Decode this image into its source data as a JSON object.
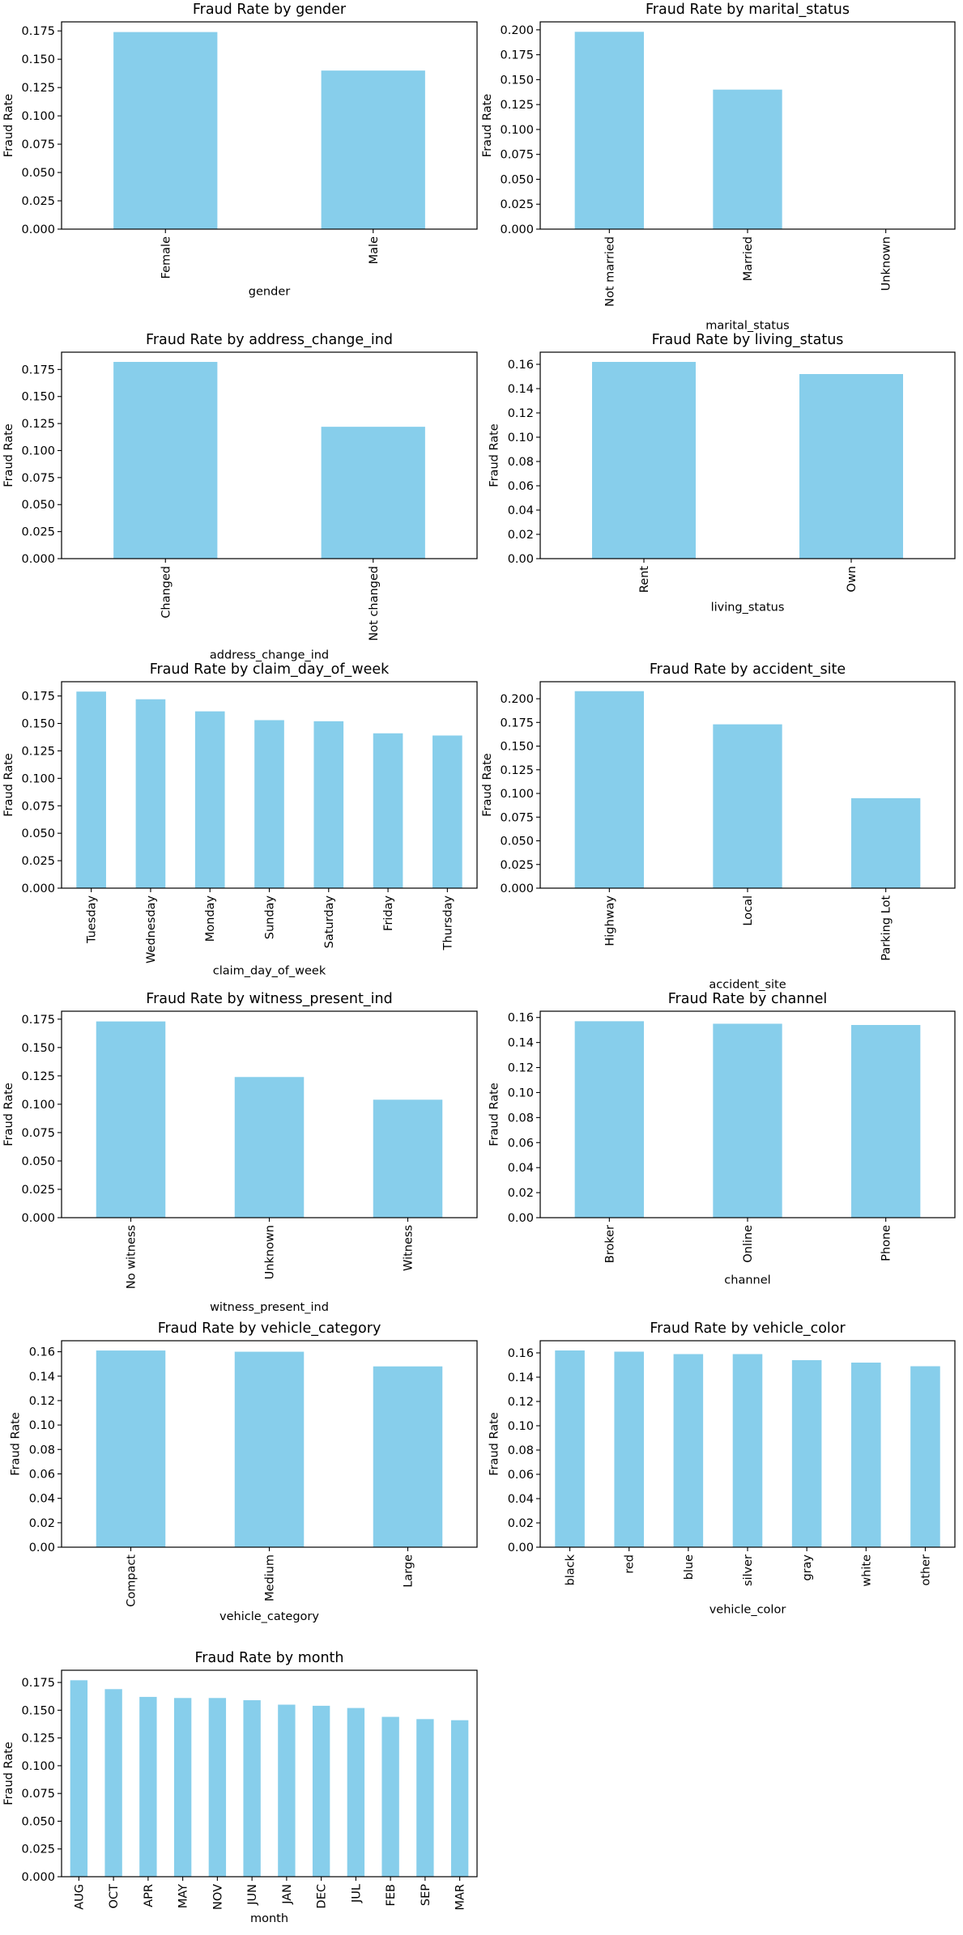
{
  "chart_data": [
    {
      "type": "bar",
      "title": "Fraud Rate by gender",
      "xlabel": "gender",
      "ylabel": "Fraud Rate",
      "categories": [
        "Female",
        "Male"
      ],
      "values": [
        0.174,
        0.14
      ],
      "ylim": [
        0,
        0.183
      ],
      "yticks": [
        "0.000",
        "0.025",
        "0.050",
        "0.075",
        "0.100",
        "0.125",
        "0.150",
        "0.175"
      ],
      "grid": false,
      "bar_color": "#87CEEB"
    },
    {
      "type": "bar",
      "title": "Fraud Rate by marital_status",
      "xlabel": "marital_status",
      "ylabel": "Fraud Rate",
      "categories": [
        "Not married",
        "Married",
        "Unknown"
      ],
      "values": [
        0.198,
        0.14,
        0.0
      ],
      "ylim": [
        0,
        0.208
      ],
      "yticks": [
        "0.000",
        "0.025",
        "0.050",
        "0.075",
        "0.100",
        "0.125",
        "0.150",
        "0.175",
        "0.200"
      ],
      "grid": false,
      "bar_color": "#87CEEB"
    },
    {
      "type": "bar",
      "title": "Fraud Rate by address_change_ind",
      "xlabel": "address_change_ind",
      "ylabel": "Fraud Rate",
      "categories": [
        "Changed",
        "Not changed"
      ],
      "values": [
        0.182,
        0.122
      ],
      "ylim": [
        0,
        0.191
      ],
      "yticks": [
        "0.000",
        "0.025",
        "0.050",
        "0.075",
        "0.100",
        "0.125",
        "0.150",
        "0.175"
      ],
      "grid": false,
      "bar_color": "#87CEEB"
    },
    {
      "type": "bar",
      "title": "Fraud Rate by living_status",
      "xlabel": "living_status",
      "ylabel": "Fraud Rate",
      "categories": [
        "Rent",
        "Own"
      ],
      "values": [
        0.162,
        0.152
      ],
      "ylim": [
        0,
        0.17
      ],
      "yticks": [
        "0.00",
        "0.02",
        "0.04",
        "0.06",
        "0.08",
        "0.10",
        "0.12",
        "0.14",
        "0.16"
      ],
      "grid": false,
      "bar_color": "#87CEEB"
    },
    {
      "type": "bar",
      "title": "Fraud Rate by claim_day_of_week",
      "xlabel": "claim_day_of_week",
      "ylabel": "Fraud Rate",
      "categories": [
        "Tuesday",
        "Wednesday",
        "Monday",
        "Sunday",
        "Saturday",
        "Friday",
        "Thursday"
      ],
      "values": [
        0.179,
        0.172,
        0.161,
        0.153,
        0.152,
        0.141,
        0.139
      ],
      "ylim": [
        0,
        0.188
      ],
      "yticks": [
        "0.000",
        "0.025",
        "0.050",
        "0.075",
        "0.100",
        "0.125",
        "0.150",
        "0.175"
      ],
      "grid": false,
      "bar_color": "#87CEEB"
    },
    {
      "type": "bar",
      "title": "Fraud Rate by accident_site",
      "xlabel": "accident_site",
      "ylabel": "Fraud Rate",
      "categories": [
        "Highway",
        "Local",
        "Parking Lot"
      ],
      "values": [
        0.208,
        0.173,
        0.095
      ],
      "ylim": [
        0,
        0.218
      ],
      "yticks": [
        "0.000",
        "0.025",
        "0.050",
        "0.075",
        "0.100",
        "0.125",
        "0.150",
        "0.175",
        "0.200"
      ],
      "grid": false,
      "bar_color": "#87CEEB"
    },
    {
      "type": "bar",
      "title": "Fraud Rate by witness_present_ind",
      "xlabel": "witness_present_ind",
      "ylabel": "Fraud Rate",
      "categories": [
        "No witness",
        "Unknown",
        "Witness"
      ],
      "values": [
        0.173,
        0.124,
        0.104
      ],
      "ylim": [
        0,
        0.182
      ],
      "yticks": [
        "0.000",
        "0.025",
        "0.050",
        "0.075",
        "0.100",
        "0.125",
        "0.150",
        "0.175"
      ],
      "grid": false,
      "bar_color": "#87CEEB"
    },
    {
      "type": "bar",
      "title": "Fraud Rate by channel",
      "xlabel": "channel",
      "ylabel": "Fraud Rate",
      "categories": [
        "Broker",
        "Online",
        "Phone"
      ],
      "values": [
        0.157,
        0.155,
        0.154
      ],
      "ylim": [
        0,
        0.165
      ],
      "yticks": [
        "0.00",
        "0.02",
        "0.04",
        "0.06",
        "0.08",
        "0.10",
        "0.12",
        "0.14",
        "0.16"
      ],
      "grid": false,
      "bar_color": "#87CEEB"
    },
    {
      "type": "bar",
      "title": "Fraud Rate by vehicle_category",
      "xlabel": "vehicle_category",
      "ylabel": "Fraud Rate",
      "categories": [
        "Compact",
        "Medium",
        "Large"
      ],
      "values": [
        0.161,
        0.16,
        0.148
      ],
      "ylim": [
        0,
        0.169
      ],
      "yticks": [
        "0.00",
        "0.02",
        "0.04",
        "0.06",
        "0.08",
        "0.10",
        "0.12",
        "0.14",
        "0.16"
      ],
      "grid": false,
      "bar_color": "#87CEEB"
    },
    {
      "type": "bar",
      "title": "Fraud Rate by vehicle_color",
      "xlabel": "vehicle_color",
      "ylabel": "Fraud Rate",
      "categories": [
        "black",
        "red",
        "blue",
        "silver",
        "gray",
        "white",
        "other"
      ],
      "values": [
        0.162,
        0.161,
        0.159,
        0.159,
        0.154,
        0.152,
        0.149
      ],
      "ylim": [
        0,
        0.17
      ],
      "yticks": [
        "0.00",
        "0.02",
        "0.04",
        "0.06",
        "0.08",
        "0.10",
        "0.12",
        "0.14",
        "0.16"
      ],
      "grid": false,
      "bar_color": "#87CEEB"
    },
    {
      "type": "bar",
      "title": "Fraud Rate by month",
      "xlabel": "month",
      "ylabel": "Fraud Rate",
      "categories": [
        "AUG",
        "OCT",
        "APR",
        "MAY",
        "NOV",
        "JUN",
        "JAN",
        "DEC",
        "JUL",
        "FEB",
        "SEP",
        "MAR"
      ],
      "values": [
        0.177,
        0.169,
        0.162,
        0.161,
        0.161,
        0.159,
        0.155,
        0.154,
        0.152,
        0.144,
        0.142,
        0.141
      ],
      "ylim": [
        0,
        0.186
      ],
      "yticks": [
        "0.000",
        "0.025",
        "0.050",
        "0.075",
        "0.100",
        "0.125",
        "0.150",
        "0.175"
      ],
      "grid": false,
      "bar_color": "#87CEEB"
    }
  ]
}
